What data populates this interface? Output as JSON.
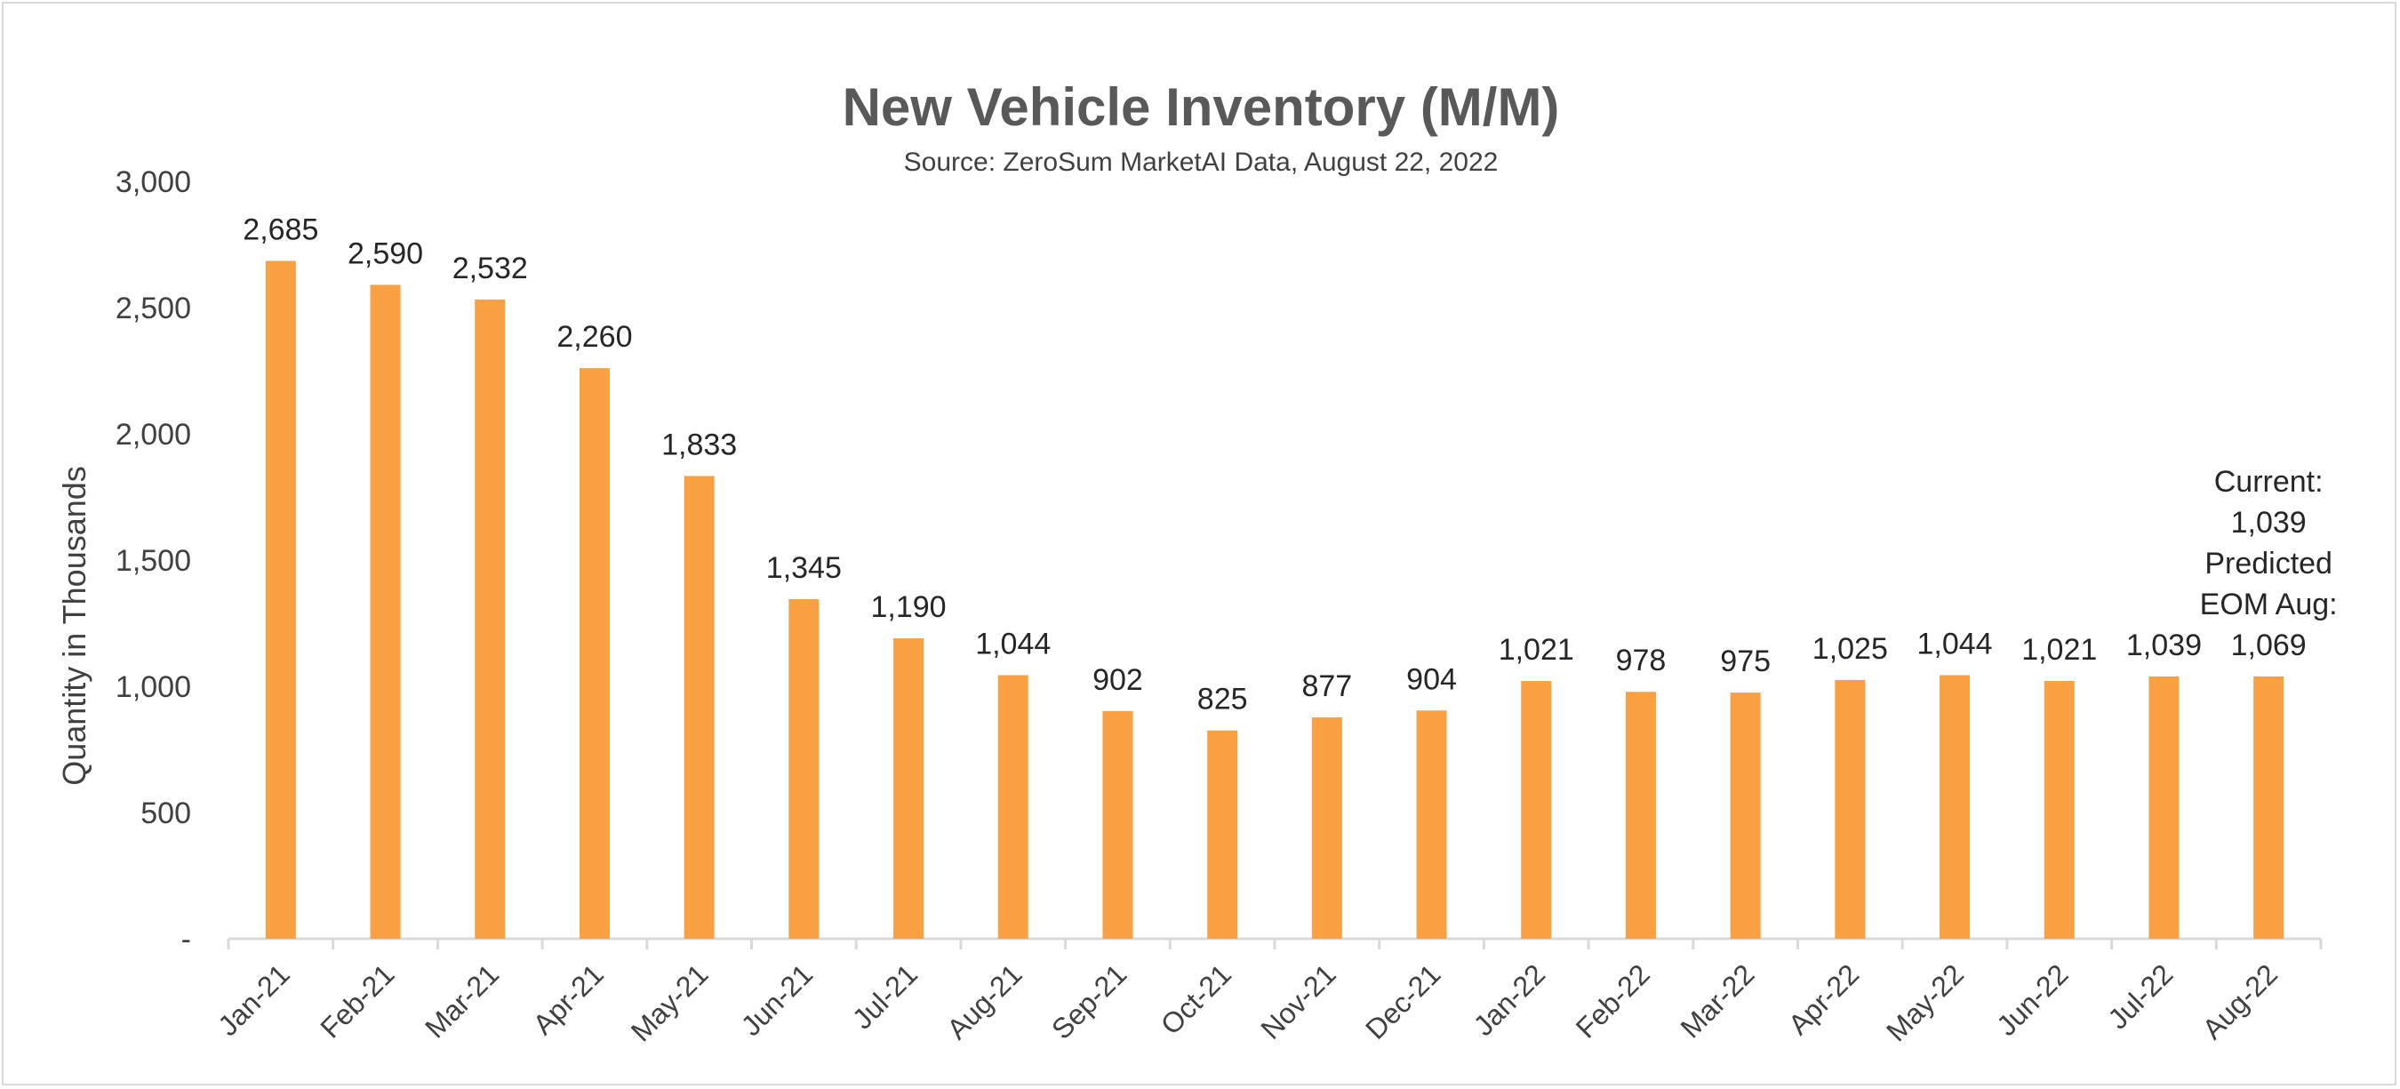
{
  "chart_data": {
    "type": "bar",
    "title": "New Vehicle Inventory (M/M)",
    "subtitle": "Source: ZeroSum MarketAI Data, August 22, 2022",
    "xlabel": "",
    "ylabel": "Quantity in Thousands",
    "ylim": [
      0,
      3000
    ],
    "yticks": [
      0,
      500,
      1000,
      1500,
      2000,
      2500,
      3000
    ],
    "ytick_labels": [
      "-",
      "500",
      "1,000",
      "1,500",
      "2,000",
      "2,500",
      "3,000"
    ],
    "categories": [
      "Jan-21",
      "Feb-21",
      "Mar-21",
      "Apr-21",
      "May-21",
      "Jun-21",
      "Jul-21",
      "Aug-21",
      "Sep-21",
      "Oct-21",
      "Nov-21",
      "Dec-21",
      "Jan-22",
      "Feb-22",
      "Mar-22",
      "Apr-22",
      "May-22",
      "Jun-22",
      "Jul-22",
      "Aug-22"
    ],
    "values": [
      2685,
      2590,
      2532,
      2260,
      1833,
      1345,
      1190,
      1044,
      902,
      825,
      877,
      904,
      1021,
      978,
      975,
      1025,
      1044,
      1021,
      1039,
      1039
    ],
    "data_labels": [
      "2,685",
      "2,590",
      "2,532",
      "2,260",
      "1,833",
      "1,345",
      "1,190",
      "1,044",
      "902",
      "825",
      "877",
      "904",
      "1,021",
      "978",
      "975",
      "1,025",
      "1,044",
      "1,021",
      "1,039",
      ""
    ],
    "annotation_lines": [
      "Current:",
      "1,039",
      "Predicted",
      "EOM Aug:",
      "1,069"
    ],
    "bar_color": "#f9a043",
    "axis_color": "#d9d9d9",
    "grid": false
  }
}
